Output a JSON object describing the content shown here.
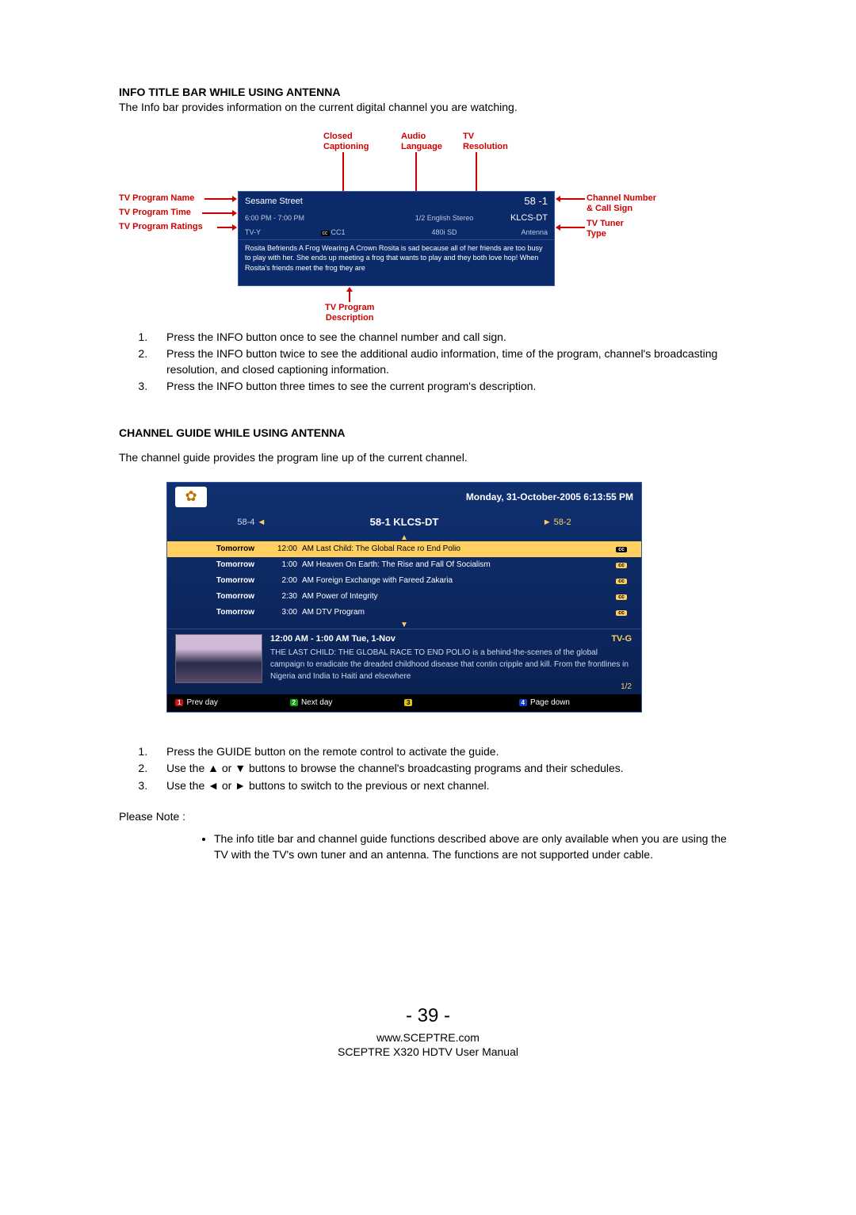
{
  "section1": {
    "title": "INFO TITLE BAR WHILE USING ANTENNA",
    "intro": "The Info bar provides information on the current digital channel you are watching."
  },
  "callouts": {
    "closed_captioning": "Closed\nCaptioning",
    "audio_language": "Audio\nLanguage",
    "tv_resolution": "TV\nResolution",
    "program_name": "TV Program Name",
    "program_time": "TV Program Time",
    "program_ratings": "TV Program Ratings",
    "channel_number": "Channel Number\n& Call Sign",
    "tuner_type": "TV Tuner\nType",
    "program_description": "TV Program\nDescription"
  },
  "infobar": {
    "title": "Sesame Street",
    "channel": "58 -1",
    "time": "6:00 PM - 7:00 PM",
    "audio": "1/2 English Stereo",
    "callsign": "KLCS-DT",
    "rating": "TV-Y",
    "cc": "CC1",
    "resolution": "480i SD",
    "tuner": "Antenna",
    "description": "Rosita Befriends A Frog Wearing A Crown Rosita is sad because all of her friends are too busy to play with her. She ends up meeting a frog that wants to play and they both love hop! When Rosita's friends meet the frog they are"
  },
  "steps1": [
    "Press the INFO button once to see the channel number and call sign.",
    "Press the INFO button twice to see the additional audio information, time of the program, channel's broadcasting resolution, and closed captioning information.",
    "Press the INFO button three times to see the current program's description."
  ],
  "section2": {
    "title": "CHANNEL GUIDE WHILE USING ANTENNA",
    "intro": "The channel guide provides the program line up of the current channel."
  },
  "guide": {
    "datetime": "Monday, 31-October-2005 6:13:55 PM",
    "ch_a": "58-4",
    "ch_b": "58-1  KLCS-DT",
    "ch_c": "58-2",
    "rows": [
      {
        "day": "Tomorrow",
        "time": "12:00",
        "prog": "AM Last Child: The Global Race ro End Polio",
        "hl": true
      },
      {
        "day": "Tomorrow",
        "time": "1:00",
        "prog": "AM Heaven On Earth: The Rise and Fall Of Socialism",
        "hl": false
      },
      {
        "day": "Tomorrow",
        "time": "2:00",
        "prog": "AM Foreign Exchange with Fareed Zakaria",
        "hl": false
      },
      {
        "day": "Tomorrow",
        "time": "2:30",
        "prog": "AM Power of Integrity",
        "hl": false
      },
      {
        "day": "Tomorrow",
        "time": "3:00",
        "prog": "AM DTV Program",
        "hl": false
      }
    ],
    "detail_time": "12:00 AM - 1:00 AM Tue, 1-Nov",
    "detail_rating": "TV-G",
    "detail_desc": "THE LAST CHILD: THE GLOBAL RACE TO END POLIO is a behind-the-scenes of the global campaign to eradicate the dreaded childhood disease that contin cripple and kill. From the frontlines in Nigeria and India to Haiti and elsewhere",
    "detail_page": "1/2",
    "btn_prev": "Prev day",
    "btn_next": "Next day",
    "btn_pgdn": "Page down"
  },
  "steps2": [
    "Press the GUIDE button on the remote control to activate the guide.",
    "Use the ▲ or ▼ buttons to browse the channel's broadcasting programs and their schedules.",
    "Use the ◄ or ► buttons to switch to the previous or next channel."
  ],
  "note_label": "Please Note :",
  "note_bullet": "The info title bar and channel guide functions described above are only available when you are using the TV with the TV's own tuner and an antenna.  The functions are not supported under cable.",
  "footer": {
    "page": "- 39 -",
    "url": "www.SCEPTRE.com",
    "manual": "SCEPTRE X320 HDTV User Manual"
  }
}
